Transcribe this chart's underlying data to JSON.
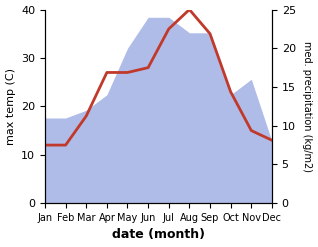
{
  "months": [
    "Jan",
    "Feb",
    "Mar",
    "Apr",
    "May",
    "Jun",
    "Jul",
    "Aug",
    "Sep",
    "Oct",
    "Nov",
    "Dec"
  ],
  "temperature": [
    12,
    12,
    18,
    27,
    27,
    28,
    36,
    40,
    35,
    23,
    15,
    13
  ],
  "precipitation": [
    11,
    11,
    12,
    14,
    20,
    24,
    24,
    22,
    22,
    14,
    16,
    8
  ],
  "temp_color": "#c0392b",
  "precip_color_fill": "#b0bce8",
  "ylabel_left": "max temp (C)",
  "ylabel_right": "med. precipitation (kg/m2)",
  "xlabel": "date (month)",
  "ylim_left": [
    0,
    40
  ],
  "ylim_right": [
    0,
    25
  ],
  "background_color": "#ffffff"
}
